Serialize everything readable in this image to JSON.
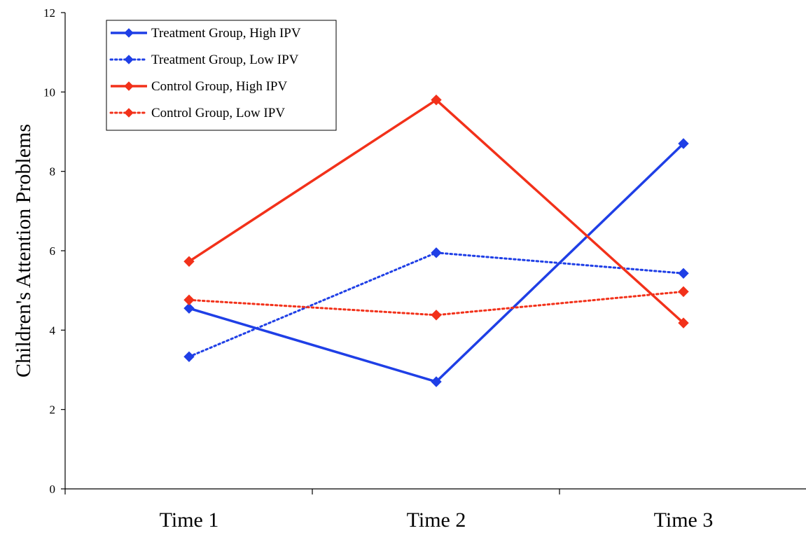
{
  "chart_data": {
    "type": "line",
    "title": "",
    "xlabel": "",
    "ylabel": "Children's Attention Problems",
    "categories": [
      "Time 1",
      "Time 2",
      "Time 3"
    ],
    "ylim": [
      0,
      12
    ],
    "yticks": [
      0,
      2,
      4,
      6,
      8,
      10,
      12
    ],
    "grid": false,
    "legend_position": "top-left",
    "series": [
      {
        "name": "Treatment Group, High IPV",
        "values": [
          4.55,
          2.7,
          8.7
        ],
        "color": "#1f3fe6",
        "line_style": "solid",
        "marker": "diamond"
      },
      {
        "name": "Treatment Group, Low IPV",
        "values": [
          3.33,
          5.95,
          5.43
        ],
        "color": "#1f3fe6",
        "line_style": "dotted",
        "marker": "diamond"
      },
      {
        "name": "Control Group, High IPV",
        "values": [
          5.73,
          9.8,
          4.18
        ],
        "color": "#f2311a",
        "line_style": "solid",
        "marker": "diamond"
      },
      {
        "name": "Control Group, Low IPV",
        "values": [
          4.76,
          4.38,
          4.97
        ],
        "color": "#f2311a",
        "line_style": "dotted",
        "marker": "diamond"
      }
    ]
  }
}
